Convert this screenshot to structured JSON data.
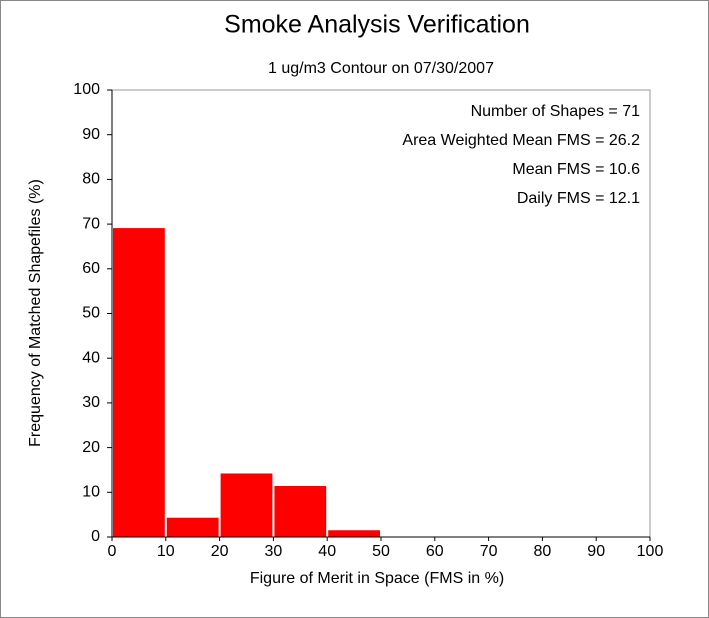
{
  "chart_data": {
    "type": "histogram",
    "title": "Smoke Analysis Verification",
    "subtitle": "1 ug/m3 Contour on 07/30/2007",
    "xlabel": "Figure of Merit in Space (FMS in %)",
    "ylabel": "Frequency of Matched Shapefiles (%)",
    "annotations": [
      "Number of Shapes = 71",
      "Area Weighted Mean FMS = 26.2",
      "Mean FMS = 10.6",
      "Daily FMS = 12.1"
    ],
    "bins": [
      0,
      10,
      20,
      30,
      40,
      50,
      60,
      70,
      80,
      90,
      100
    ],
    "values": [
      69.0,
      4.2,
      14.1,
      11.3,
      1.4,
      0,
      0,
      0,
      0,
      0
    ],
    "color": "#ff0000",
    "xlim": [
      0,
      100
    ],
    "xticks": [
      0,
      10,
      20,
      30,
      40,
      50,
      60,
      70,
      80,
      90,
      100
    ],
    "ylim": [
      0,
      100
    ],
    "yticks": [
      0,
      10,
      20,
      30,
      40,
      50,
      60,
      70,
      80,
      90,
      100
    ]
  }
}
